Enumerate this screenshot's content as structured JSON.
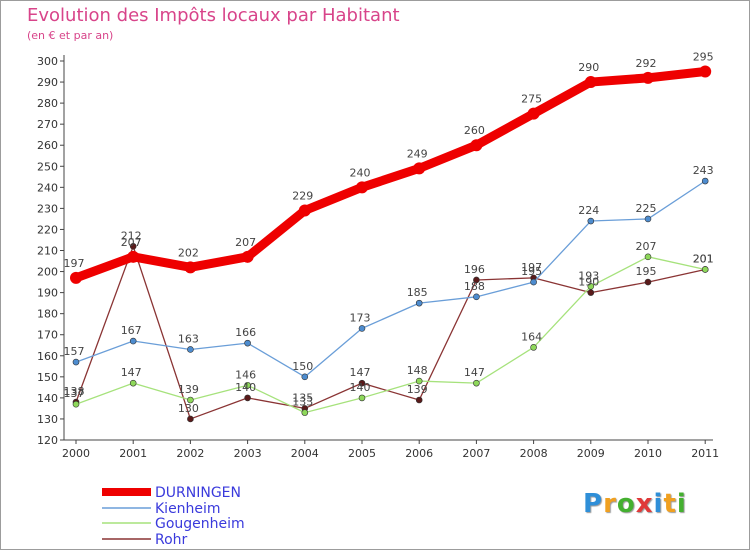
{
  "chart_data": {
    "type": "line",
    "title": "Evolution des Impôts locaux par Habitant",
    "subtitle": "(en € et par an)",
    "xlabel": "",
    "ylabel": "",
    "ylim": [
      120,
      300
    ],
    "yticks": [
      120,
      130,
      140,
      150,
      160,
      170,
      180,
      190,
      200,
      210,
      220,
      230,
      240,
      250,
      260,
      270,
      280,
      290,
      300
    ],
    "categories": [
      "2000",
      "2001",
      "2002",
      "2003",
      "2004",
      "2005",
      "2006",
      "2007",
      "2008",
      "2009",
      "2010",
      "2011"
    ],
    "series": [
      {
        "name": "DURNINGEN",
        "color": "#ee0000",
        "bold": true,
        "values": [
          197,
          207,
          202,
          207,
          229,
          240,
          249,
          260,
          275,
          290,
          292,
          295
        ]
      },
      {
        "name": "Kienheim",
        "color": "#6a9ed8",
        "point": "#4d8ccf",
        "values": [
          157,
          167,
          163,
          166,
          150,
          173,
          185,
          188,
          195,
          224,
          225,
          243
        ]
      },
      {
        "name": "Gougenheim",
        "color": "#a6e27c",
        "point": "#8ed85a",
        "values": [
          137,
          147,
          139,
          146,
          133,
          140,
          148,
          147,
          164,
          193,
          207,
          201
        ]
      },
      {
        "name": "Rohr",
        "color": "#8a3434",
        "point": "#5a1a1a",
        "values": [
          138,
          212,
          130,
          140,
          135,
          147,
          139,
          196,
          197,
          190,
          195,
          201
        ]
      }
    ],
    "grid": false,
    "legend_position": "bottom-left"
  },
  "logo": {
    "text": "Proxiti",
    "letters": [
      "P",
      "r",
      "o",
      "x",
      "i",
      "t",
      "i"
    ],
    "colors": [
      "#2f8fd8",
      "#f0a020",
      "#44b030",
      "#e03a3a",
      "#2f8fd8",
      "#f0a020",
      "#44b030"
    ]
  }
}
